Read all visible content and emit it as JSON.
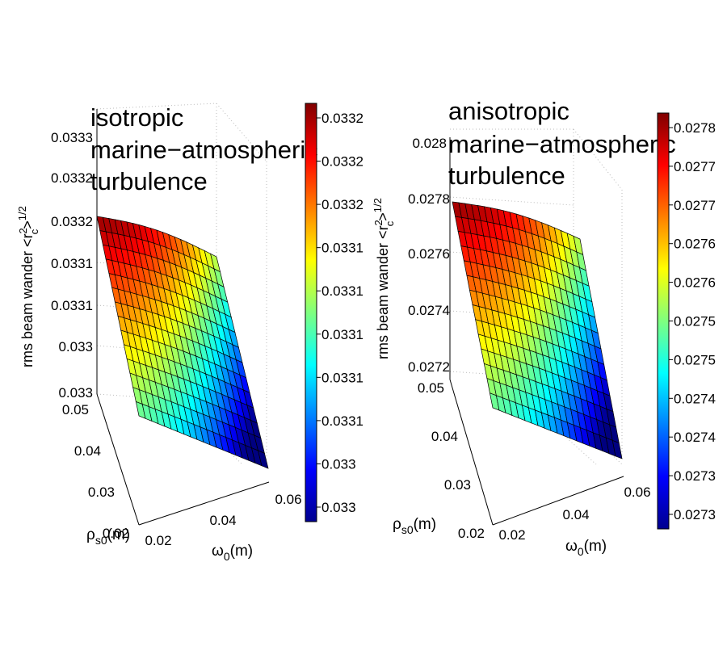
{
  "chart_data": [
    {
      "type": "surface",
      "title_lines": [
        "isotropic",
        "marine−atmospheric",
        "turbulence"
      ],
      "xlabel": "ω",
      "xlabel_sub": "0",
      "xlabel_unit": "(m)",
      "ylabel": "ρ",
      "ylabel_sub": "s0",
      "ylabel_unit": "(m)",
      "zlabel_main": "rms beam wander <r",
      "zlabel_sup": "2",
      "zlabel_sub": "c",
      "zlabel_close": ">",
      "zlabel_exp": "1/2",
      "x_ticks": [
        "0.02",
        "0.04",
        "0.06"
      ],
      "y_ticks": [
        "0.02",
        "0.03",
        "0.04",
        "0.05"
      ],
      "z_ticks": [
        "0.033",
        "0.033",
        "0.0331",
        "0.0331",
        "0.0332",
        "0.0332",
        "0.0333"
      ],
      "x_range": [
        0.02,
        0.06
      ],
      "y_range": [
        0.02,
        0.05
      ],
      "z_range": [
        0.03299,
        0.03321
      ],
      "colorbar_ticks": [
        "0.0332",
        "0.0332",
        "0.0332",
        "0.0331",
        "0.0331",
        "0.0331",
        "0.0331",
        "0.0331",
        "0.033",
        "0.033"
      ],
      "colormap": "jet",
      "grid": true
    },
    {
      "type": "surface",
      "title_lines": [
        "anisotropic",
        "marine−atmospheric",
        "turbulence"
      ],
      "xlabel": "ω",
      "xlabel_sub": "0",
      "xlabel_unit": "(m)",
      "ylabel": "ρ",
      "ylabel_sub": "s0",
      "ylabel_unit": "(m)",
      "zlabel_main": "rms beam wander <r",
      "zlabel_sup": "2",
      "zlabel_sub": "c",
      "zlabel_close": ">",
      "zlabel_exp": "1/2",
      "x_ticks": [
        "0.02",
        "0.04",
        "0.06"
      ],
      "y_ticks": [
        "0.02",
        "0.03",
        "0.04",
        "0.05"
      ],
      "z_ticks": [
        "0.0272",
        "0.0274",
        "0.0276",
        "0.0278",
        "0.028"
      ],
      "x_range": [
        0.02,
        0.06
      ],
      "y_range": [
        0.02,
        0.05
      ],
      "z_range": [
        0.0272,
        0.0278
      ],
      "colorbar_ticks": [
        "0.0278",
        "0.0277",
        "0.0277",
        "0.0276",
        "0.0276",
        "0.0275",
        "0.0275",
        "0.0274",
        "0.0274",
        "0.0273",
        "0.0273"
      ],
      "colormap": "jet",
      "grid": true
    }
  ]
}
